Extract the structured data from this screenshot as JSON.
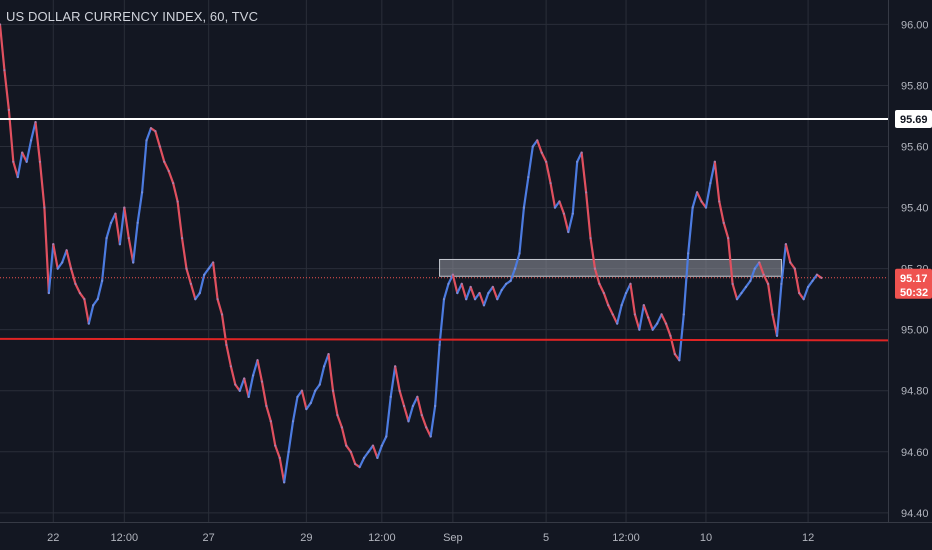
{
  "chart_title": "US DOLLAR CURRENCY INDEX, 60, TVC",
  "colors": {
    "background": "#131722",
    "grid": "#2a2e39",
    "axis_text": "#b2b5be",
    "up": "#4c7be0",
    "down": "#e0505f",
    "resistance_line": "#ffffff",
    "support_line": "#e02424",
    "zone_fill": "#9598a1",
    "price_tag": "#ef5350"
  },
  "chart_data": {
    "type": "line",
    "title": "US DOLLAR CURRENCY INDEX, 60, TVC",
    "ylim": [
      94.37,
      96.08
    ],
    "xlim": [
      0,
      200
    ],
    "y_ticks": [
      {
        "value": 96.0,
        "label": "96.00"
      },
      {
        "value": 95.8,
        "label": "95.80"
      },
      {
        "value": 95.6,
        "label": "95.60"
      },
      {
        "value": 95.4,
        "label": "95.40"
      },
      {
        "value": 95.2,
        "label": "95.20"
      },
      {
        "value": 95.0,
        "label": "95.00"
      },
      {
        "value": 94.8,
        "label": "94.80"
      },
      {
        "value": 94.6,
        "label": "94.60"
      },
      {
        "value": 94.4,
        "label": "94.40"
      }
    ],
    "x_ticks": [
      {
        "x": 12,
        "label": "22"
      },
      {
        "x": 28,
        "label": "12:00"
      },
      {
        "x": 47,
        "label": "27"
      },
      {
        "x": 69,
        "label": "29"
      },
      {
        "x": 86,
        "label": "12:00"
      },
      {
        "x": 102,
        "label": "Sep"
      },
      {
        "x": 123,
        "label": "5"
      },
      {
        "x": 141,
        "label": "12:00"
      },
      {
        "x": 159,
        "label": "10"
      },
      {
        "x": 182,
        "label": "12"
      }
    ],
    "series": [
      {
        "points": [
          [
            0,
            96.0
          ],
          [
            1,
            95.85
          ],
          [
            2,
            95.72
          ],
          [
            3,
            95.55
          ],
          [
            4,
            95.5
          ],
          [
            5,
            95.58
          ],
          [
            6,
            95.55
          ],
          [
            7,
            95.62
          ],
          [
            8,
            95.68
          ],
          [
            9,
            95.55
          ],
          [
            10,
            95.4
          ],
          [
            11,
            95.12
          ],
          [
            12,
            95.28
          ],
          [
            13,
            95.2
          ],
          [
            14,
            95.22
          ],
          [
            15,
            95.26
          ],
          [
            16,
            95.2
          ],
          [
            17,
            95.15
          ],
          [
            18,
            95.12
          ],
          [
            19,
            95.1
          ],
          [
            20,
            95.02
          ],
          [
            21,
            95.08
          ],
          [
            22,
            95.1
          ],
          [
            23,
            95.16
          ],
          [
            24,
            95.3
          ],
          [
            25,
            95.35
          ],
          [
            26,
            95.38
          ],
          [
            27,
            95.28
          ],
          [
            28,
            95.4
          ],
          [
            29,
            95.3
          ],
          [
            30,
            95.22
          ],
          [
            31,
            95.35
          ],
          [
            32,
            95.45
          ],
          [
            33,
            95.62
          ],
          [
            34,
            95.66
          ],
          [
            35,
            95.65
          ],
          [
            36,
            95.6
          ],
          [
            37,
            95.55
          ],
          [
            38,
            95.52
          ],
          [
            39,
            95.48
          ],
          [
            40,
            95.42
          ],
          [
            41,
            95.3
          ],
          [
            42,
            95.2
          ],
          [
            43,
            95.15
          ],
          [
            44,
            95.1
          ],
          [
            45,
            95.12
          ],
          [
            46,
            95.18
          ],
          [
            47,
            95.2
          ],
          [
            48,
            95.22
          ],
          [
            49,
            95.1
          ],
          [
            50,
            95.05
          ],
          [
            51,
            94.95
          ],
          [
            52,
            94.88
          ],
          [
            53,
            94.82
          ],
          [
            54,
            94.8
          ],
          [
            55,
            94.84
          ],
          [
            56,
            94.78
          ],
          [
            57,
            94.85
          ],
          [
            58,
            94.9
          ],
          [
            59,
            94.83
          ],
          [
            60,
            94.75
          ],
          [
            61,
            94.7
          ],
          [
            62,
            94.62
          ],
          [
            63,
            94.58
          ],
          [
            64,
            94.5
          ],
          [
            65,
            94.6
          ],
          [
            66,
            94.7
          ],
          [
            67,
            94.78
          ],
          [
            68,
            94.8
          ],
          [
            69,
            94.74
          ],
          [
            70,
            94.76
          ],
          [
            71,
            94.8
          ],
          [
            72,
            94.82
          ],
          [
            73,
            94.88
          ],
          [
            74,
            94.92
          ],
          [
            75,
            94.8
          ],
          [
            76,
            94.72
          ],
          [
            77,
            94.68
          ],
          [
            78,
            94.62
          ],
          [
            79,
            94.6
          ],
          [
            80,
            94.56
          ],
          [
            81,
            94.55
          ],
          [
            82,
            94.58
          ],
          [
            83,
            94.6
          ],
          [
            84,
            94.62
          ],
          [
            85,
            94.58
          ],
          [
            86,
            94.62
          ],
          [
            87,
            94.65
          ],
          [
            88,
            94.78
          ],
          [
            89,
            94.88
          ],
          [
            90,
            94.8
          ],
          [
            91,
            94.75
          ],
          [
            92,
            94.7
          ],
          [
            93,
            94.75
          ],
          [
            94,
            94.78
          ],
          [
            95,
            94.72
          ],
          [
            96,
            94.68
          ],
          [
            97,
            94.65
          ],
          [
            98,
            94.75
          ],
          [
            99,
            94.95
          ],
          [
            100,
            95.1
          ],
          [
            101,
            95.15
          ],
          [
            102,
            95.18
          ],
          [
            103,
            95.12
          ],
          [
            104,
            95.15
          ],
          [
            105,
            95.1
          ],
          [
            106,
            95.14
          ],
          [
            107,
            95.1
          ],
          [
            108,
            95.12
          ],
          [
            109,
            95.08
          ],
          [
            110,
            95.12
          ],
          [
            111,
            95.14
          ],
          [
            112,
            95.1
          ],
          [
            113,
            95.13
          ],
          [
            114,
            95.15
          ],
          [
            115,
            95.16
          ],
          [
            116,
            95.2
          ],
          [
            117,
            95.25
          ],
          [
            118,
            95.4
          ],
          [
            119,
            95.5
          ],
          [
            120,
            95.6
          ],
          [
            121,
            95.62
          ],
          [
            122,
            95.58
          ],
          [
            123,
            95.55
          ],
          [
            124,
            95.48
          ],
          [
            125,
            95.4
          ],
          [
            126,
            95.42
          ],
          [
            127,
            95.38
          ],
          [
            128,
            95.32
          ],
          [
            129,
            95.38
          ],
          [
            130,
            95.55
          ],
          [
            131,
            95.58
          ],
          [
            132,
            95.45
          ],
          [
            133,
            95.3
          ],
          [
            134,
            95.2
          ],
          [
            135,
            95.15
          ],
          [
            136,
            95.12
          ],
          [
            137,
            95.08
          ],
          [
            138,
            95.05
          ],
          [
            139,
            95.02
          ],
          [
            140,
            95.08
          ],
          [
            141,
            95.12
          ],
          [
            142,
            95.15
          ],
          [
            143,
            95.05
          ],
          [
            144,
            95.0
          ],
          [
            145,
            95.08
          ],
          [
            146,
            95.04
          ],
          [
            147,
            95.0
          ],
          [
            148,
            95.02
          ],
          [
            149,
            95.05
          ],
          [
            150,
            95.02
          ],
          [
            151,
            94.98
          ],
          [
            152,
            94.92
          ],
          [
            153,
            94.9
          ],
          [
            154,
            95.05
          ],
          [
            155,
            95.25
          ],
          [
            156,
            95.4
          ],
          [
            157,
            95.45
          ],
          [
            158,
            95.42
          ],
          [
            159,
            95.4
          ],
          [
            160,
            95.48
          ],
          [
            161,
            95.55
          ],
          [
            162,
            95.42
          ],
          [
            163,
            95.35
          ],
          [
            164,
            95.3
          ],
          [
            165,
            95.15
          ],
          [
            166,
            95.1
          ],
          [
            167,
            95.12
          ],
          [
            168,
            95.14
          ],
          [
            169,
            95.16
          ],
          [
            170,
            95.2
          ],
          [
            171,
            95.22
          ],
          [
            172,
            95.18
          ],
          [
            173,
            95.15
          ],
          [
            174,
            95.05
          ],
          [
            175,
            94.98
          ],
          [
            176,
            95.15
          ],
          [
            177,
            95.28
          ],
          [
            178,
            95.22
          ],
          [
            179,
            95.2
          ],
          [
            180,
            95.12
          ],
          [
            181,
            95.1
          ],
          [
            182,
            95.14
          ],
          [
            183,
            95.16
          ],
          [
            184,
            95.18
          ],
          [
            185,
            95.17
          ]
        ]
      }
    ],
    "horizontal_lines": [
      {
        "value": 95.69,
        "label": "95.69",
        "color": "#ffffff"
      }
    ],
    "support_trendline": {
      "x": [
        0,
        200
      ],
      "y": [
        94.97,
        94.965
      ],
      "color": "#e02424"
    },
    "zone": {
      "x_start": 99,
      "x_end": 176,
      "y_low": 95.175,
      "y_high": 95.23
    },
    "current_price": {
      "value": 95.17,
      "label": "95.17",
      "countdown": "50:32"
    }
  }
}
